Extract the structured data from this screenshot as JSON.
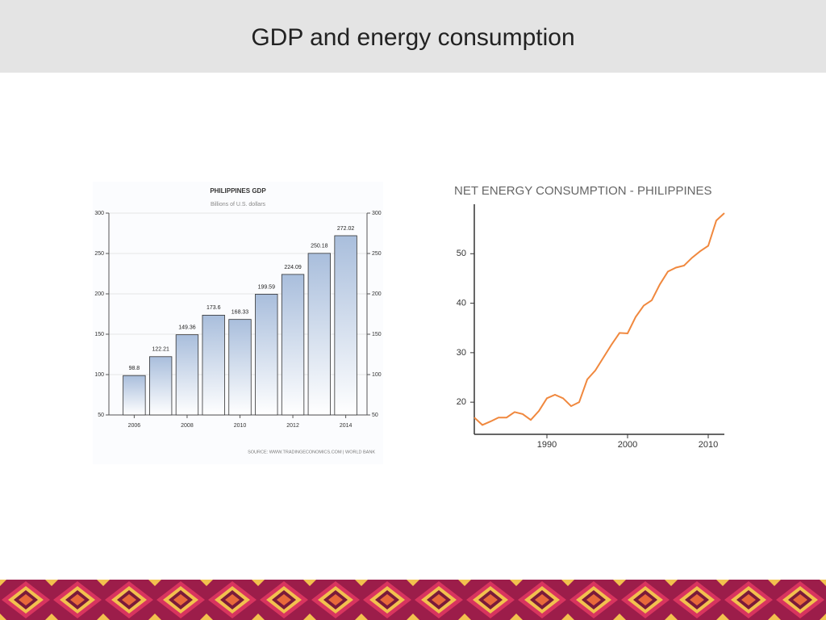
{
  "slide": {
    "title": "GDP and energy consumption"
  },
  "chart_data": [
    {
      "type": "bar",
      "title": "PHILIPPINES GDP",
      "subtitle": "Billions of U.S. dollars",
      "categories": [
        "2006",
        null,
        "2008",
        null,
        "2010",
        null,
        "2012",
        null,
        "2014"
      ],
      "values": [
        98.8,
        122.21,
        149.36,
        173.6,
        168.33,
        199.59,
        224.09,
        250.18,
        272.02
      ],
      "color": "#a9bedc",
      "ylim": [
        50,
        300
      ],
      "yticks": [
        50,
        100,
        150,
        200,
        250,
        300
      ],
      "y2lim": [
        50,
        300
      ],
      "y2ticks": [
        50,
        100,
        150,
        200,
        250,
        300
      ],
      "grid": true,
      "source": "SOURCE: WWW.TRADINGECONOMICS.COM | WORLD BANK"
    },
    {
      "type": "line",
      "title": "NET ENERGY CONSUMPTION - PHILIPPINES",
      "x": [
        1981,
        1982,
        1983,
        1984,
        1985,
        1986,
        1987,
        1988,
        1989,
        1990,
        1991,
        1992,
        1993,
        1994,
        1995,
        1996,
        1997,
        1998,
        1999,
        2000,
        2001,
        2002,
        2003,
        2004,
        2005,
        2006,
        2007,
        2008,
        2009,
        2010,
        2011,
        2012
      ],
      "values": [
        16.9,
        15.4,
        16.1,
        16.9,
        16.9,
        18.0,
        17.6,
        16.4,
        18.2,
        20.8,
        21.5,
        20.8,
        19.2,
        20.0,
        24.6,
        26.4,
        29.0,
        31.6,
        34.0,
        33.9,
        37.2,
        39.5,
        40.6,
        43.8,
        46.4,
        47.2,
        47.6,
        49.2,
        50.5,
        51.6,
        56.7,
        58.2
      ],
      "color": "#f0883e",
      "xlim": [
        1981,
        2012
      ],
      "xticks": [
        1990,
        2000,
        2010
      ],
      "ylim": [
        13.5,
        60
      ],
      "yticks": [
        20,
        30,
        40,
        50
      ],
      "grid": false
    }
  ]
}
